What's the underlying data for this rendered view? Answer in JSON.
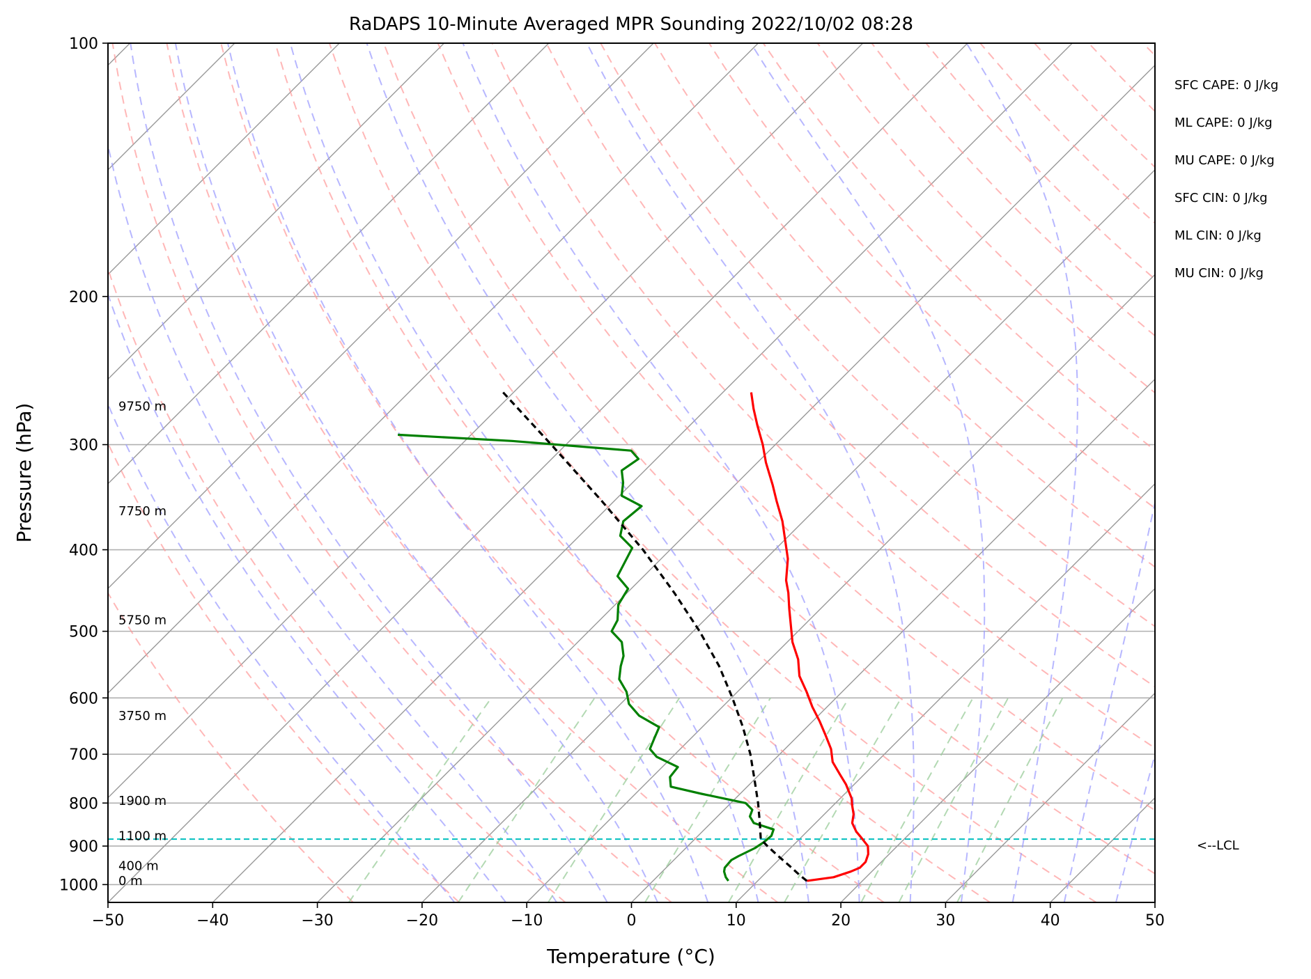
{
  "chart_data": {
    "type": "line",
    "subtype": "skew-T log-P sounding",
    "title": "RaDAPS 10-Minute Averaged MPR Sounding 2022/10/02 08:28",
    "xlabel": "Temperature (°C)",
    "ylabel": "Pressure (hPa)",
    "xlim": [
      -50,
      50
    ],
    "ylim": [
      1050,
      100
    ],
    "y_scale": "log",
    "x_ticks": [
      {
        "value": -50,
        "label": "−50"
      },
      {
        "value": -40,
        "label": "−40"
      },
      {
        "value": -30,
        "label": "−30"
      },
      {
        "value": -20,
        "label": "−20"
      },
      {
        "value": -10,
        "label": "−10"
      },
      {
        "value": 0,
        "label": "0"
      },
      {
        "value": 10,
        "label": "10"
      },
      {
        "value": 20,
        "label": "20"
      },
      {
        "value": 30,
        "label": "30"
      },
      {
        "value": 40,
        "label": "40"
      },
      {
        "value": 50,
        "label": "50"
      }
    ],
    "y_ticks": [
      {
        "value": 100,
        "label": "100"
      },
      {
        "value": 200,
        "label": "200"
      },
      {
        "value": 300,
        "label": "300"
      },
      {
        "value": 400,
        "label": "400"
      },
      {
        "value": 500,
        "label": "500"
      },
      {
        "value": 600,
        "label": "600"
      },
      {
        "value": 700,
        "label": "700"
      },
      {
        "value": 800,
        "label": "800"
      },
      {
        "value": 900,
        "label": "900"
      },
      {
        "value": 1000,
        "label": "1000"
      }
    ],
    "grid": true,
    "skew_degrees": 45,
    "height_labels": [
      {
        "pressure": 990,
        "label": "0 m"
      },
      {
        "pressure": 950,
        "label": "400 m"
      },
      {
        "pressure": 875,
        "label": "1100 m"
      },
      {
        "pressure": 795,
        "label": "1900 m"
      },
      {
        "pressure": 630,
        "label": "3750 m"
      },
      {
        "pressure": 485,
        "label": "5750 m"
      },
      {
        "pressure": 360,
        "label": "7750 m"
      },
      {
        "pressure": 270,
        "label": "9750 m"
      }
    ],
    "parameters": [
      "SFC CAPE: 0 J/kg",
      "ML CAPE: 0 J/kg",
      "MU CAPE: 0 J/kg",
      "SFC CIN: 0 J/kg",
      "ML CIN: 0 J/kg",
      "MU CIN: 0 J/kg"
    ],
    "lcl": {
      "pressure": 883,
      "label": "<--LCL"
    },
    "series": [
      {
        "color": "#ff0000",
        "points": [
          {
            "p": 990,
            "t": 14.7
          },
          {
            "p": 980,
            "t": 16.9
          },
          {
            "p": 965,
            "t": 18.0
          },
          {
            "p": 955,
            "t": 18.5
          },
          {
            "p": 940,
            "t": 18.5
          },
          {
            "p": 920,
            "t": 18.0
          },
          {
            "p": 900,
            "t": 17.2
          },
          {
            "p": 880,
            "t": 15.8
          },
          {
            "p": 865,
            "t": 14.7
          },
          {
            "p": 845,
            "t": 13.5
          },
          {
            "p": 825,
            "t": 12.8
          },
          {
            "p": 805,
            "t": 11.8
          },
          {
            "p": 790,
            "t": 11.1
          },
          {
            "p": 760,
            "t": 9.2
          },
          {
            "p": 740,
            "t": 7.7
          },
          {
            "p": 715,
            "t": 5.8
          },
          {
            "p": 690,
            "t": 4.4
          },
          {
            "p": 665,
            "t": 2.6
          },
          {
            "p": 640,
            "t": 0.7
          },
          {
            "p": 615,
            "t": -1.4
          },
          {
            "p": 590,
            "t": -3.4
          },
          {
            "p": 565,
            "t": -5.6
          },
          {
            "p": 540,
            "t": -7.3
          },
          {
            "p": 515,
            "t": -9.5
          },
          {
            "p": 490,
            "t": -11.4
          },
          {
            "p": 470,
            "t": -13.0
          },
          {
            "p": 450,
            "t": -14.6
          },
          {
            "p": 435,
            "t": -16.0
          },
          {
            "p": 410,
            "t": -17.9
          },
          {
            "p": 390,
            "t": -19.9
          },
          {
            "p": 370,
            "t": -22.0
          },
          {
            "p": 350,
            "t": -24.5
          },
          {
            "p": 335,
            "t": -26.4
          },
          {
            "p": 315,
            "t": -29.2
          },
          {
            "p": 300,
            "t": -31.2
          },
          {
            "p": 285,
            "t": -33.5
          },
          {
            "p": 272,
            "t": -35.5
          },
          {
            "p": 260,
            "t": -37.3
          }
        ]
      },
      {
        "color": "#008000",
        "points": [
          {
            "p": 990,
            "t": 7.2
          },
          {
            "p": 980,
            "t": 6.6
          },
          {
            "p": 965,
            "t": 5.9
          },
          {
            "p": 955,
            "t": 5.6
          },
          {
            "p": 935,
            "t": 5.5
          },
          {
            "p": 925,
            "t": 5.8
          },
          {
            "p": 905,
            "t": 6.6
          },
          {
            "p": 890,
            "t": 6.9
          },
          {
            "p": 875,
            "t": 7.0
          },
          {
            "p": 860,
            "t": 6.6
          },
          {
            "p": 845,
            "t": 4.1
          },
          {
            "p": 830,
            "t": 3.1
          },
          {
            "p": 815,
            "t": 2.7
          },
          {
            "p": 800,
            "t": 1.4
          },
          {
            "p": 780,
            "t": -3.7
          },
          {
            "p": 765,
            "t": -7.3
          },
          {
            "p": 745,
            "t": -8.3
          },
          {
            "p": 725,
            "t": -8.5
          },
          {
            "p": 705,
            "t": -11.5
          },
          {
            "p": 690,
            "t": -12.9
          },
          {
            "p": 670,
            "t": -13.5
          },
          {
            "p": 650,
            "t": -14.1
          },
          {
            "p": 630,
            "t": -17.1
          },
          {
            "p": 610,
            "t": -19.2
          },
          {
            "p": 590,
            "t": -20.6
          },
          {
            "p": 570,
            "t": -22.5
          },
          {
            "p": 550,
            "t": -23.6
          },
          {
            "p": 535,
            "t": -24.3
          },
          {
            "p": 515,
            "t": -25.8
          },
          {
            "p": 500,
            "t": -27.8
          },
          {
            "p": 485,
            "t": -28.3
          },
          {
            "p": 465,
            "t": -29.7
          },
          {
            "p": 445,
            "t": -30.3
          },
          {
            "p": 430,
            "t": -32.5
          },
          {
            "p": 415,
            "t": -33.1
          },
          {
            "p": 398,
            "t": -33.8
          },
          {
            "p": 385,
            "t": -36.1
          },
          {
            "p": 370,
            "t": -37.2
          },
          {
            "p": 355,
            "t": -36.9
          },
          {
            "p": 345,
            "t": -39.8
          },
          {
            "p": 333,
            "t": -40.9
          },
          {
            "p": 322,
            "t": -42.2
          },
          {
            "p": 312,
            "t": -41.7
          },
          {
            "p": 305,
            "t": -43.2
          },
          {
            "p": 297,
            "t": -55.5
          },
          {
            "p": 292,
            "t": -67.0
          }
        ]
      },
      {
        "color": "#000000",
        "dashed": true,
        "points": [
          {
            "p": 990,
            "t": 14.7
          },
          {
            "p": 975,
            "t": 13.5
          },
          {
            "p": 950,
            "t": 11.6
          },
          {
            "p": 925,
            "t": 9.6
          },
          {
            "p": 900,
            "t": 7.6
          },
          {
            "p": 883,
            "t": 6.3
          },
          {
            "p": 850,
            "t": 4.9
          },
          {
            "p": 800,
            "t": 2.6
          },
          {
            "p": 750,
            "t": 0.0
          },
          {
            "p": 700,
            "t": -2.8
          },
          {
            "p": 650,
            "t": -6.1
          },
          {
            "p": 600,
            "t": -9.9
          },
          {
            "p": 550,
            "t": -14.2
          },
          {
            "p": 500,
            "t": -19.4
          },
          {
            "p": 450,
            "t": -25.5
          },
          {
            "p": 400,
            "t": -32.6
          },
          {
            "p": 350,
            "t": -41.2
          },
          {
            "p": 300,
            "t": -51.4
          },
          {
            "p": 260,
            "t": -61.0
          }
        ]
      }
    ],
    "background_lines": {
      "isotherm_color": "#999999",
      "dry_adiabat_color": "#ff9999",
      "moist_adiabat_color": "#9999ff",
      "mixing_ratio_color": "#99cc99"
    }
  }
}
